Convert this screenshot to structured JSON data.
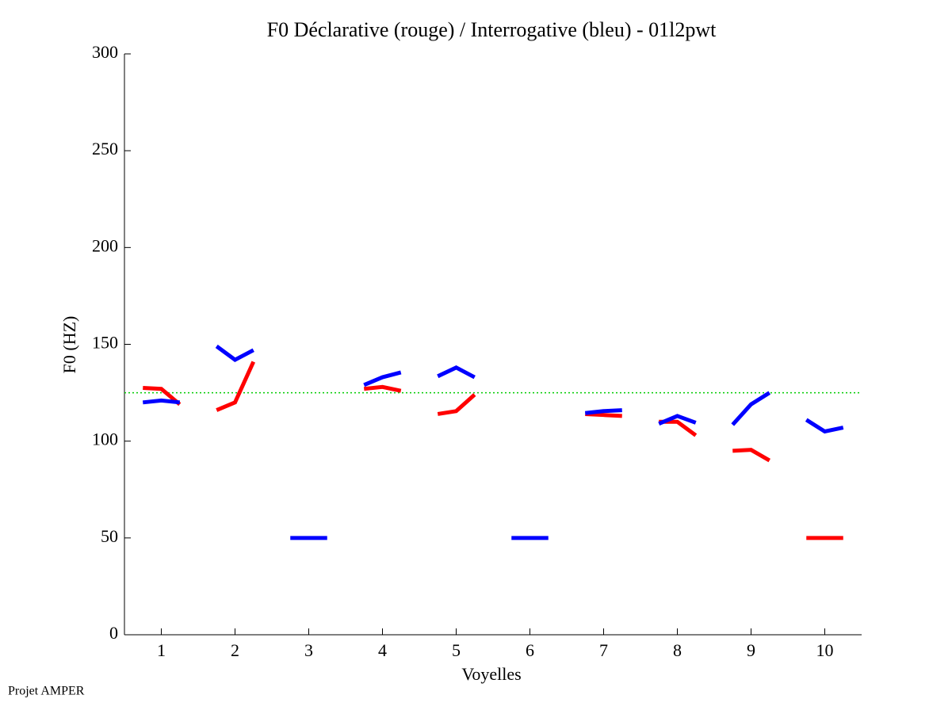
{
  "chart_data": {
    "type": "line",
    "title": "F0 Déclarative (rouge) / Interrogative (bleu) - 01l2pwt",
    "x_label": "Voyelles",
    "y_label": "F0 (HZ)",
    "footer": "Projet AMPER",
    "x": [
      0.75,
      1,
      1.25,
      1.5,
      1.75,
      2,
      2.25,
      2.5,
      2.75,
      3,
      3.25,
      3.5,
      3.75,
      4,
      4.25,
      4.5,
      4.75,
      5,
      5.25,
      5.5,
      5.75,
      6,
      6.25,
      6.5,
      6.75,
      7,
      7.25,
      7.5,
      7.75,
      8,
      8.25,
      8.5,
      8.75,
      9,
      9.25,
      9.5,
      9.75,
      10,
      10.25
    ],
    "series": [
      {
        "name": "Déclarative",
        "color": "#ff0000",
        "values": [
          127.5,
          127,
          119,
          null,
          116,
          120,
          141,
          null,
          null,
          null,
          null,
          null,
          127,
          128,
          126,
          null,
          114,
          115.5,
          124,
          null,
          null,
          null,
          null,
          null,
          114,
          113.5,
          113,
          null,
          110,
          110,
          103,
          null,
          95,
          95.5,
          90,
          null,
          50,
          50,
          50
        ]
      },
      {
        "name": "Interrogative",
        "color": "#0000ff",
        "values": [
          120,
          121,
          120,
          null,
          149,
          142,
          147,
          null,
          50,
          50,
          50,
          null,
          129,
          133,
          135.5,
          null,
          133.5,
          138,
          133,
          null,
          50,
          50,
          50,
          null,
          114.5,
          115.5,
          116,
          null,
          109,
          113,
          109.5,
          null,
          108.5,
          119,
          125,
          null,
          111,
          105,
          107
        ]
      }
    ],
    "reference_line": 125,
    "reference_color": "#00cc00",
    "xlim": [
      0.5,
      10.5
    ],
    "xticks": [
      1,
      2,
      3,
      4,
      5,
      6,
      7,
      8,
      9,
      10
    ],
    "ylim": [
      0,
      300
    ],
    "yticks": [
      0,
      50,
      100,
      150,
      200,
      250,
      300
    ]
  }
}
